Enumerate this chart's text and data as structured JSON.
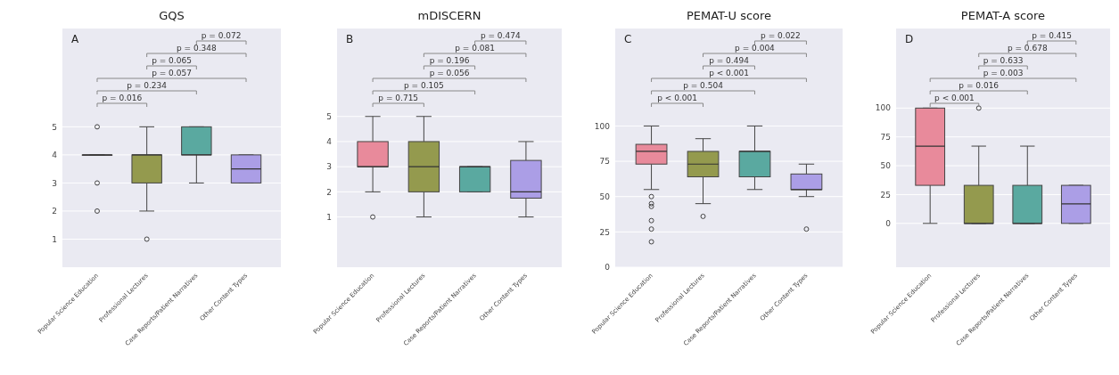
{
  "chart_data": [
    {
      "type": "box",
      "title": "GQS",
      "categories": [
        "Popular Science Education",
        "Professional Lectures",
        "Case Reports/Patient Narratives",
        "Other Content Types"
      ],
      "colors": [
        "#e88a9b",
        "#949a4e",
        "#5aa9a0",
        "#ab9ee6"
      ],
      "ylim": [
        0,
        8.5
      ],
      "yticks": [
        1,
        2,
        3,
        4,
        5
      ],
      "grid": "y",
      "boxes": [
        {
          "low": 4,
          "q1": 4,
          "median": 4,
          "q3": 4,
          "high": 4,
          "outliers": [
            5,
            3,
            2
          ]
        },
        {
          "low": 2,
          "q1": 3,
          "median": 4,
          "q3": 4,
          "high": 5,
          "outliers": [
            1
          ]
        },
        {
          "low": 3,
          "q1": 4,
          "median": 4,
          "q3": 5,
          "high": 5
        },
        {
          "low": 3,
          "q1": 3,
          "median": 3.5,
          "q3": 4,
          "high": 4
        }
      ],
      "annotations": [
        "A",
        "p = 0.016",
        "p = 0.234",
        "p = 0.057",
        "p = 0.065",
        "p = 0.348",
        "p = 0.072"
      ]
    },
    {
      "type": "box",
      "title": "mDISCERN",
      "categories": [
        "Popular Science Education",
        "Professional Lectures",
        "Case Reports/Patient Narratives",
        "Other Content Types"
      ],
      "colors": [
        "#e88a9b",
        "#949a4e",
        "#5aa9a0",
        "#ab9ee6"
      ],
      "ylim": [
        -1,
        8.5
      ],
      "yticks": [
        1,
        2,
        3,
        4,
        5
      ],
      "grid": "y",
      "boxes": [
        {
          "low": 2,
          "q1": 3,
          "median": 3,
          "q3": 4,
          "high": 5,
          "outliers": [
            1
          ]
        },
        {
          "low": 1,
          "q1": 2,
          "median": 3,
          "q3": 4,
          "high": 5
        },
        {
          "low": 2,
          "q1": 2,
          "median": 3,
          "q3": 3,
          "high": 3
        },
        {
          "low": 1,
          "q1": 1.75,
          "median": 2,
          "q3": 3.25,
          "high": 4
        }
      ],
      "annotations": [
        "B",
        "p = 0.715",
        "p = 0.105",
        "p = 0.056",
        "p = 0.196",
        "p = 0.081",
        "p = 0.474"
      ]
    },
    {
      "type": "box",
      "title": "PEMAT-U score",
      "categories": [
        "Popular Science Education",
        "Professional Lectures",
        "Case Reports/Patient Narratives",
        "Other Content Types"
      ],
      "colors": [
        "#e88a9b",
        "#949a4e",
        "#5aa9a0",
        "#ab9ee6"
      ],
      "ylim": [
        0,
        169
      ],
      "yticks": [
        0,
        25,
        50,
        75,
        100
      ],
      "grid": "y",
      "boxes": [
        {
          "low": 55,
          "q1": 73,
          "median": 82,
          "q3": 87,
          "high": 100,
          "outliers": [
            50,
            45,
            43,
            33,
            27,
            18
          ]
        },
        {
          "low": 45,
          "q1": 64,
          "median": 73,
          "q3": 82,
          "high": 91,
          "outliers": [
            36
          ]
        },
        {
          "low": 55,
          "q1": 64,
          "median": 82,
          "q3": 82,
          "high": 100
        },
        {
          "low": 50,
          "q1": 55,
          "median": 55,
          "q3": 66,
          "high": 73,
          "outliers": [
            27
          ]
        }
      ],
      "annotations": [
        "C",
        "p < 0.001",
        "p = 0.504",
        "p < 0.001",
        "p = 0.494",
        "p = 0.004",
        "p = 0.022"
      ]
    },
    {
      "type": "box",
      "title": "PEMAT-A score",
      "categories": [
        "Popular Science Education",
        "Professional Lectures",
        "Case Reports/Patient Narratives",
        "Other Content Types"
      ],
      "colors": [
        "#e88a9b",
        "#949a4e",
        "#5aa9a0",
        "#ab9ee6"
      ],
      "ylim": [
        -38,
        169
      ],
      "yticks": [
        0,
        25,
        50,
        75,
        100
      ],
      "grid": "y",
      "boxes": [
        {
          "low": 0,
          "q1": 33,
          "median": 67,
          "q3": 100,
          "high": 100
        },
        {
          "low": 0,
          "q1": 0,
          "median": 0,
          "q3": 33,
          "high": 67,
          "outliers": [
            100
          ]
        },
        {
          "low": 0,
          "q1": 0,
          "median": 0,
          "q3": 33,
          "high": 67
        },
        {
          "low": 0,
          "q1": 0,
          "median": 17,
          "q3": 33,
          "high": 33
        }
      ],
      "annotations": [
        "D",
        "p < 0.001",
        "p = 0.016",
        "p = 0.003",
        "p = 0.633",
        "p = 0.678",
        "p = 0.415"
      ]
    }
  ]
}
